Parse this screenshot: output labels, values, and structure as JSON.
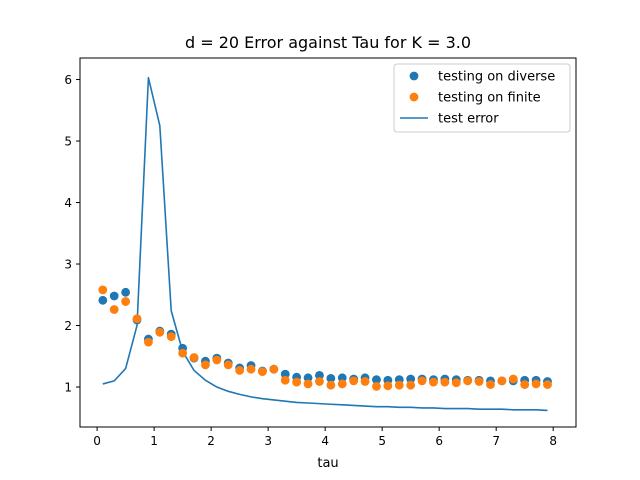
{
  "chart_data": {
    "type": "scatter",
    "title": "d = 20 Error against Tau for K = 3.0",
    "xlabel": "tau",
    "ylabel": "",
    "xlim": [
      -0.3,
      8.4
    ],
    "ylim": [
      0.35,
      6.35
    ],
    "xticks": [
      0,
      1,
      2,
      3,
      4,
      5,
      6,
      7,
      8
    ],
    "yticks": [
      1,
      2,
      3,
      4,
      5,
      6
    ],
    "grid": false,
    "legend_position": "top-right",
    "series": [
      {
        "name": "testing on diverse",
        "kind": "scatter",
        "color": "#1f77b4",
        "x": [
          0.1,
          0.3,
          0.5,
          0.7,
          0.9,
          1.1,
          1.3,
          1.5,
          1.7,
          1.9,
          2.1,
          2.3,
          2.5,
          2.7,
          2.9,
          3.1,
          3.3,
          3.5,
          3.7,
          3.9,
          4.1,
          4.3,
          4.5,
          4.7,
          4.9,
          5.1,
          5.3,
          5.5,
          5.7,
          5.9,
          6.1,
          6.3,
          6.5,
          6.7,
          6.9,
          7.1,
          7.3,
          7.5,
          7.7,
          7.9
        ],
        "y": [
          2.41,
          2.48,
          2.54,
          2.09,
          1.78,
          1.91,
          1.86,
          1.63,
          1.47,
          1.42,
          1.47,
          1.39,
          1.31,
          1.35,
          1.26,
          1.29,
          1.21,
          1.16,
          1.15,
          1.19,
          1.14,
          1.15,
          1.13,
          1.15,
          1.12,
          1.11,
          1.12,
          1.13,
          1.13,
          1.12,
          1.13,
          1.12,
          1.11,
          1.11,
          1.1,
          1.1,
          1.1,
          1.11,
          1.11,
          1.09
        ]
      },
      {
        "name": "testing on finite",
        "kind": "scatter",
        "color": "#ff7f0e",
        "x": [
          0.1,
          0.3,
          0.5,
          0.7,
          0.9,
          1.1,
          1.3,
          1.5,
          1.7,
          1.9,
          2.1,
          2.3,
          2.5,
          2.7,
          2.9,
          3.1,
          3.3,
          3.5,
          3.7,
          3.9,
          4.1,
          4.3,
          4.5,
          4.7,
          4.9,
          5.1,
          5.3,
          5.5,
          5.7,
          5.9,
          6.1,
          6.3,
          6.5,
          6.7,
          6.9,
          7.1,
          7.3,
          7.5,
          7.7,
          7.9
        ],
        "y": [
          2.58,
          2.26,
          2.39,
          2.11,
          1.73,
          1.89,
          1.82,
          1.55,
          1.48,
          1.36,
          1.44,
          1.36,
          1.27,
          1.29,
          1.25,
          1.29,
          1.11,
          1.08,
          1.05,
          1.09,
          1.03,
          1.05,
          1.1,
          1.09,
          1.01,
          1.02,
          1.03,
          1.03,
          1.1,
          1.08,
          1.08,
          1.07,
          1.1,
          1.09,
          1.04,
          1.1,
          1.13,
          1.04,
          1.05,
          1.04
        ]
      },
      {
        "name": "test error",
        "kind": "line",
        "color": "#1f77b4",
        "x": [
          0.1,
          0.3,
          0.5,
          0.7,
          0.9,
          1.1,
          1.3,
          1.5,
          1.7,
          1.9,
          2.1,
          2.3,
          2.5,
          2.7,
          2.9,
          3.1,
          3.3,
          3.5,
          3.7,
          3.9,
          4.1,
          4.3,
          4.5,
          4.7,
          4.9,
          5.1,
          5.3,
          5.5,
          5.7,
          5.9,
          6.1,
          6.3,
          6.5,
          6.7,
          6.9,
          7.1,
          7.3,
          7.5,
          7.7,
          7.9
        ],
        "y": [
          1.05,
          1.1,
          1.3,
          2.0,
          6.03,
          5.25,
          2.24,
          1.58,
          1.27,
          1.11,
          1.0,
          0.93,
          0.88,
          0.84,
          0.81,
          0.79,
          0.77,
          0.75,
          0.74,
          0.73,
          0.72,
          0.71,
          0.7,
          0.69,
          0.68,
          0.68,
          0.67,
          0.67,
          0.66,
          0.66,
          0.65,
          0.65,
          0.65,
          0.64,
          0.64,
          0.64,
          0.63,
          0.63,
          0.63,
          0.62
        ]
      }
    ]
  }
}
